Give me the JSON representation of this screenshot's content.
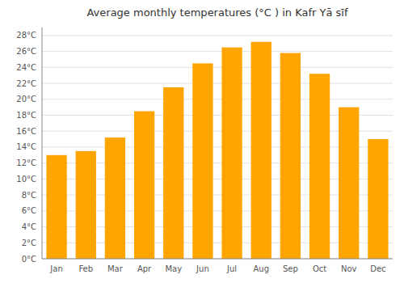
{
  "chart_data": {
    "type": "bar",
    "title": "Average monthly temperatures (°C ) in Kafr Yā sīf",
    "categories": [
      "Jan",
      "Feb",
      "Mar",
      "Apr",
      "May",
      "Jun",
      "Jul",
      "Aug",
      "Sep",
      "Oct",
      "Nov",
      "Dec"
    ],
    "values": [
      13.0,
      13.5,
      15.2,
      18.5,
      21.5,
      24.5,
      26.5,
      27.2,
      25.8,
      23.2,
      19.0,
      15.0
    ],
    "color": "#FFA500",
    "ylim": [
      0,
      29
    ],
    "yticks": [
      {
        "value": 0,
        "label": "0°C"
      },
      {
        "value": 2,
        "label": "2°C"
      },
      {
        "value": 4,
        "label": "4°C"
      },
      {
        "value": 6,
        "label": "6°C"
      },
      {
        "value": 8,
        "label": "8°C"
      },
      {
        "value": 10,
        "label": "10°C"
      },
      {
        "value": 12,
        "label": "12°C"
      },
      {
        "value": 14,
        "label": "14°C"
      },
      {
        "value": 16,
        "label": "16°C"
      },
      {
        "value": 18,
        "label": "18°C"
      },
      {
        "value": 20,
        "label": "20°C"
      },
      {
        "value": 22,
        "label": "22°C"
      },
      {
        "value": 24,
        "label": "24°C"
      },
      {
        "value": 26,
        "label": "26°C"
      },
      {
        "value": 28,
        "label": "28°C"
      }
    ],
    "grid": true
  }
}
